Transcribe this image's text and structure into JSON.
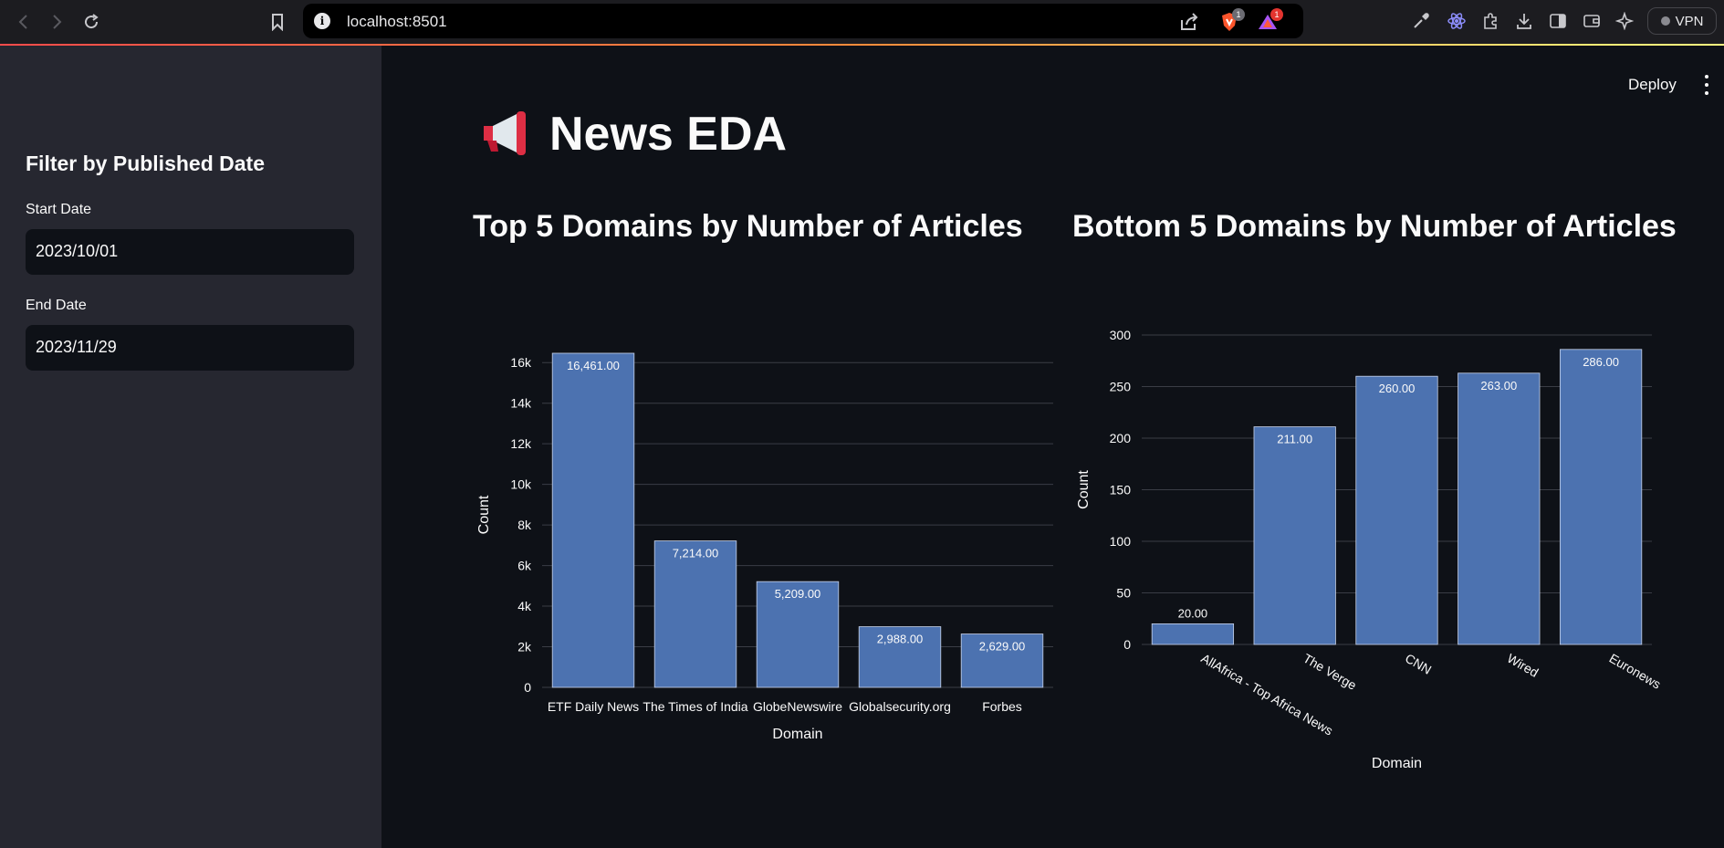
{
  "browser": {
    "url": "localhost:8501",
    "brave_badge": "1",
    "rewards_badge": "1",
    "vpn_label": "VPN"
  },
  "sidebar": {
    "heading": "Filter by Published Date",
    "start_label": "Start Date",
    "start_value": "2023/10/01",
    "end_label": "End Date",
    "end_value": "2023/11/29"
  },
  "header": {
    "deploy_label": "Deploy"
  },
  "main": {
    "title_icon": "megaphone-icon",
    "title": "News EDA"
  },
  "colors": {
    "bar_fill": "#4c72b0",
    "bar_stroke": "#c8d3ea",
    "grid": "#3a3d46",
    "accent": "#ff4b4b"
  },
  "chart_data": [
    {
      "type": "bar",
      "title": "Top 5 Domains by Number of Articles",
      "xlabel": "Domain",
      "ylabel": "Count",
      "categories": [
        "ETF Daily News",
        "The Times of India",
        "GlobeNewswire",
        "Globalsecurity.org",
        "Forbes"
      ],
      "values": [
        16461,
        7214,
        5209,
        2988,
        2629
      ],
      "value_labels": [
        "16,461.00",
        "7,214.00",
        "5,209.00",
        "2,988.00",
        "2,629.00"
      ],
      "ylim": [
        0,
        17000
      ],
      "yticks": [
        0,
        2000,
        4000,
        6000,
        8000,
        10000,
        12000,
        14000,
        16000
      ],
      "ytick_labels": [
        "0",
        "2k",
        "4k",
        "6k",
        "8k",
        "10k",
        "12k",
        "14k",
        "16k"
      ],
      "grid": true
    },
    {
      "type": "bar",
      "title": "Bottom 5 Domains by Number of Articles",
      "xlabel": "Domain",
      "ylabel": "Count",
      "categories": [
        "AllAfrica - Top Africa News",
        "The Verge",
        "CNN",
        "Wired",
        "Euronews"
      ],
      "values": [
        20,
        211,
        260,
        263,
        286
      ],
      "value_labels": [
        "20.00",
        "211.00",
        "260.00",
        "263.00",
        "286.00"
      ],
      "ylim": [
        0,
        300
      ],
      "yticks": [
        0,
        50,
        100,
        150,
        200,
        250,
        300
      ],
      "ytick_labels": [
        "0",
        "50",
        "100",
        "150",
        "200",
        "250",
        "300"
      ],
      "grid": true
    }
  ]
}
